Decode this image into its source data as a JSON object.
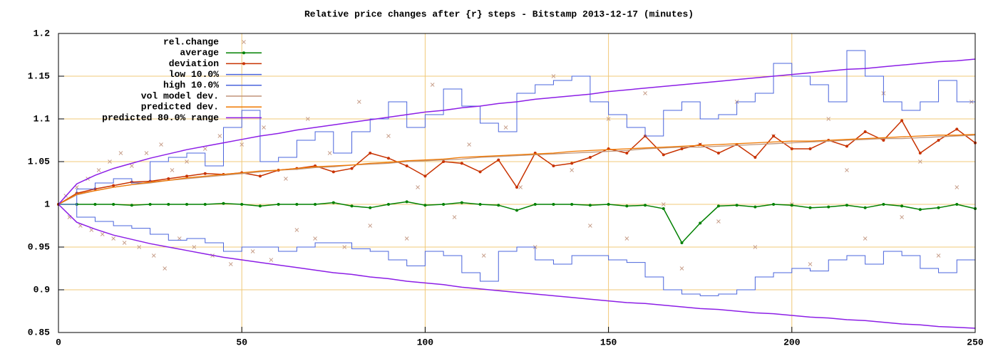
{
  "chart_data": {
    "type": "mixed",
    "title": "Relative price changes after {r} steps - Bitstamp 2013-12-17 (minutes)",
    "xlim": [
      0,
      250
    ],
    "xticks": [
      0,
      50,
      100,
      150,
      200,
      250
    ],
    "ylim": [
      0.85,
      1.2
    ],
    "yticks": [
      0.85,
      0.9,
      0.95,
      1,
      1.05,
      1.1,
      1.15,
      1.2
    ],
    "grid": true,
    "grid_color": "#f0c878",
    "legend": "top-left",
    "x": [
      0,
      5,
      10,
      15,
      20,
      25,
      30,
      35,
      40,
      45,
      50,
      55,
      60,
      65,
      70,
      75,
      80,
      85,
      90,
      95,
      100,
      105,
      110,
      115,
      120,
      125,
      130,
      135,
      140,
      145,
      150,
      155,
      160,
      165,
      170,
      175,
      180,
      185,
      190,
      195,
      200,
      205,
      210,
      215,
      220,
      225,
      230,
      235,
      240,
      245,
      250
    ],
    "series": [
      {
        "name": "rel.change",
        "style": "points",
        "color": "#c8a08c",
        "x": [
          2,
          3,
          5,
          6,
          8,
          9,
          11,
          12,
          14,
          15,
          17,
          18,
          20,
          22,
          24,
          26,
          28,
          29,
          31,
          33,
          35,
          37,
          40,
          42,
          44,
          47,
          50,
          53,
          56,
          58,
          62,
          65,
          68,
          70,
          74,
          78,
          82,
          85,
          90,
          95,
          98,
          102,
          108,
          112,
          116,
          122,
          126,
          130,
          135,
          140,
          145,
          150,
          155,
          160,
          165,
          170,
          175,
          180,
          185,
          190,
          195,
          200,
          205,
          210,
          215,
          220,
          225,
          230,
          235,
          240,
          245,
          249
        ],
        "values": [
          1.01,
          0.985,
          1.02,
          0.975,
          1.03,
          0.97,
          1.04,
          0.965,
          1.05,
          0.96,
          1.06,
          0.955,
          1.045,
          0.95,
          1.06,
          0.94,
          1.07,
          0.925,
          1.04,
          0.96,
          1.05,
          0.95,
          1.065,
          0.94,
          1.08,
          0.93,
          1.07,
          0.945,
          1.09,
          0.935,
          1.03,
          0.97,
          1.1,
          0.96,
          1.06,
          0.95,
          1.12,
          0.975,
          1.08,
          0.96,
          1.02,
          1.14,
          0.985,
          1.07,
          0.94,
          1.09,
          1.02,
          0.95,
          1.15,
          1.04,
          0.975,
          1.1,
          0.96,
          1.13,
          1.0,
          0.925,
          1.07,
          0.98,
          1.12,
          0.95,
          1.08,
          1.0,
          0.93,
          1.1,
          1.04,
          0.96,
          1.13,
          0.985,
          1.05,
          0.94,
          1.02,
          1.12
        ]
      },
      {
        "name": "average",
        "style": "linespoints",
        "color": "#008000",
        "values": [
          1.0,
          1.0,
          1.0,
          1.0,
          0.999,
          1.0,
          1.0,
          1.0,
          1.0,
          1.001,
          1.0,
          0.998,
          1.0,
          1.0,
          1.0,
          1.002,
          0.998,
          0.996,
          1.0,
          1.003,
          0.999,
          1.0,
          1.002,
          1.0,
          0.999,
          0.993,
          1.0,
          1.0,
          1.0,
          0.999,
          1.0,
          0.998,
          0.999,
          0.995,
          0.955,
          0.978,
          0.998,
          0.999,
          0.997,
          1.0,
          0.999,
          0.996,
          0.997,
          0.999,
          0.996,
          1.0,
          0.998,
          0.994,
          0.996,
          1.0,
          0.995
        ]
      },
      {
        "name": "deviation",
        "style": "linespoints",
        "color": "#c83200",
        "values": [
          1.0,
          1.013,
          1.018,
          1.022,
          1.026,
          1.027,
          1.03,
          1.033,
          1.036,
          1.035,
          1.037,
          1.033,
          1.04,
          1.042,
          1.045,
          1.038,
          1.042,
          1.06,
          1.054,
          1.045,
          1.033,
          1.05,
          1.048,
          1.038,
          1.052,
          1.02,
          1.06,
          1.045,
          1.048,
          1.055,
          1.065,
          1.06,
          1.08,
          1.058,
          1.065,
          1.07,
          1.06,
          1.07,
          1.055,
          1.08,
          1.065,
          1.065,
          1.075,
          1.068,
          1.085,
          1.075,
          1.098,
          1.06,
          1.075,
          1.088,
          1.072
        ]
      },
      {
        "name": "low 10.0%",
        "style": "steps",
        "color": "#4a64dc",
        "values": [
          1.0,
          0.985,
          0.98,
          0.975,
          0.972,
          0.965,
          0.958,
          0.96,
          0.955,
          0.945,
          0.95,
          0.95,
          0.945,
          0.95,
          0.955,
          0.955,
          0.948,
          0.945,
          0.935,
          0.928,
          0.945,
          0.94,
          0.92,
          0.91,
          0.945,
          0.95,
          0.935,
          0.93,
          0.94,
          0.94,
          0.935,
          0.932,
          0.915,
          0.9,
          0.895,
          0.893,
          0.895,
          0.9,
          0.915,
          0.92,
          0.925,
          0.922,
          0.935,
          0.94,
          0.93,
          0.945,
          0.94,
          0.925,
          0.92,
          0.935,
          0.935
        ]
      },
      {
        "name": "high 10.0%",
        "style": "steps",
        "color": "#4a64dc",
        "values": [
          1.0,
          1.018,
          1.025,
          1.03,
          1.025,
          1.05,
          1.055,
          1.06,
          1.045,
          1.09,
          1.11,
          1.05,
          1.055,
          1.075,
          1.085,
          1.06,
          1.085,
          1.1,
          1.12,
          1.09,
          1.105,
          1.135,
          1.115,
          1.095,
          1.085,
          1.13,
          1.14,
          1.145,
          1.15,
          1.12,
          1.105,
          1.09,
          1.08,
          1.11,
          1.12,
          1.1,
          1.105,
          1.12,
          1.13,
          1.165,
          1.15,
          1.14,
          1.12,
          1.18,
          1.15,
          1.12,
          1.11,
          1.12,
          1.145,
          1.12,
          1.125
        ]
      },
      {
        "name": "vol model dev.",
        "style": "lines",
        "color": "#c09478",
        "values": [
          1.0,
          1.011,
          1.016,
          1.02,
          1.023,
          1.025,
          1.028,
          1.03,
          1.032,
          1.034,
          1.036,
          1.038,
          1.04,
          1.041,
          1.043,
          1.044,
          1.046,
          1.047,
          1.048,
          1.05,
          1.051,
          1.052,
          1.053,
          1.055,
          1.056,
          1.057,
          1.058,
          1.059,
          1.06,
          1.061,
          1.062,
          1.063,
          1.065,
          1.066,
          1.067,
          1.067,
          1.068,
          1.069,
          1.07,
          1.071,
          1.072,
          1.073,
          1.074,
          1.075,
          1.076,
          1.077,
          1.077,
          1.078,
          1.079,
          1.08,
          1.081
        ]
      },
      {
        "name": "predicted dev.",
        "style": "lines",
        "color": "#f07800",
        "values": [
          1.0,
          1.012,
          1.016,
          1.02,
          1.023,
          1.026,
          1.028,
          1.031,
          1.033,
          1.035,
          1.037,
          1.039,
          1.04,
          1.042,
          1.044,
          1.045,
          1.046,
          1.048,
          1.049,
          1.051,
          1.052,
          1.053,
          1.055,
          1.056,
          1.057,
          1.058,
          1.059,
          1.06,
          1.062,
          1.063,
          1.064,
          1.065,
          1.066,
          1.067,
          1.068,
          1.069,
          1.07,
          1.071,
          1.072,
          1.073,
          1.074,
          1.074,
          1.075,
          1.076,
          1.077,
          1.078,
          1.079,
          1.08,
          1.081,
          1.081,
          1.082
        ]
      },
      {
        "name": "predicted 80.0% range",
        "style": "range",
        "color": "#8c1ee6",
        "values": [
          1.0,
          1.024,
          1.034,
          1.042,
          1.048,
          1.054,
          1.059,
          1.064,
          1.068,
          1.072,
          1.076,
          1.08,
          1.083,
          1.087,
          1.09,
          1.093,
          1.096,
          1.099,
          1.102,
          1.105,
          1.108,
          1.11,
          1.113,
          1.115,
          1.118,
          1.12,
          1.123,
          1.125,
          1.127,
          1.129,
          1.132,
          1.134,
          1.136,
          1.138,
          1.14,
          1.142,
          1.144,
          1.146,
          1.148,
          1.15,
          1.152,
          1.154,
          1.156,
          1.158,
          1.159,
          1.161,
          1.163,
          1.165,
          1.167,
          1.168,
          1.17
        ],
        "lower_values": [
          1.0,
          0.979,
          0.971,
          0.964,
          0.959,
          0.954,
          0.95,
          0.946,
          0.942,
          0.938,
          0.935,
          0.932,
          0.929,
          0.926,
          0.923,
          0.92,
          0.918,
          0.915,
          0.913,
          0.91,
          0.908,
          0.906,
          0.903,
          0.901,
          0.899,
          0.897,
          0.895,
          0.893,
          0.891,
          0.889,
          0.887,
          0.885,
          0.884,
          0.882,
          0.88,
          0.878,
          0.877,
          0.875,
          0.873,
          0.872,
          0.87,
          0.868,
          0.867,
          0.865,
          0.864,
          0.862,
          0.86,
          0.859,
          0.857,
          0.856,
          0.855
        ]
      }
    ]
  }
}
